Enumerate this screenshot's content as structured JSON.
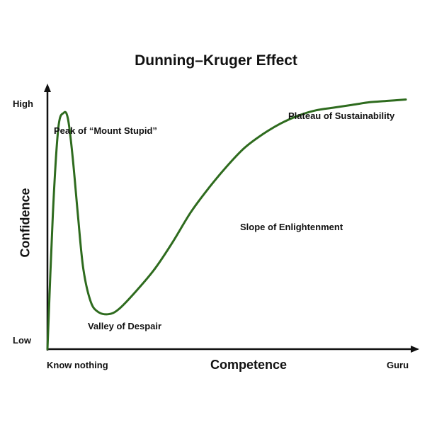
{
  "chart_data": {
    "type": "line",
    "title": "Dunning–Kruger Effect",
    "xlabel": "Competence",
    "ylabel": "Confidence",
    "x_tick_labels": [
      "Know nothing",
      "Guru"
    ],
    "y_tick_labels": [
      "Low",
      "High"
    ],
    "xlim": [
      0,
      100
    ],
    "ylim": [
      0,
      100
    ],
    "grid": false,
    "line_color": "#2e6b1e",
    "series": [
      {
        "x": [
          0,
          1.5,
          3,
          4.5,
          5.7,
          7,
          8.5,
          10,
          12,
          14,
          17,
          20,
          25,
          30,
          35,
          40,
          45,
          50,
          55,
          60,
          65,
          70,
          75,
          80,
          85,
          90,
          95,
          100
        ],
        "y": [
          0,
          50,
          82,
          88,
          86,
          72,
          50,
          30,
          18,
          14,
          13,
          15,
          22,
          30,
          40,
          51,
          60,
          68,
          75,
          80,
          84,
          87,
          89,
          90,
          91,
          92,
          92.5,
          93
        ]
      }
    ],
    "annotations": [
      {
        "text": "Peak of “Mount Stupid”",
        "x": 5.7,
        "y": 86
      },
      {
        "text": "Valley of Despair",
        "x": 17,
        "y": 13
      },
      {
        "text": "Slope of Enlightenment",
        "x": 50,
        "y": 68
      },
      {
        "text": "Plateau of Sustainability",
        "x": 90,
        "y": 92
      }
    ]
  }
}
